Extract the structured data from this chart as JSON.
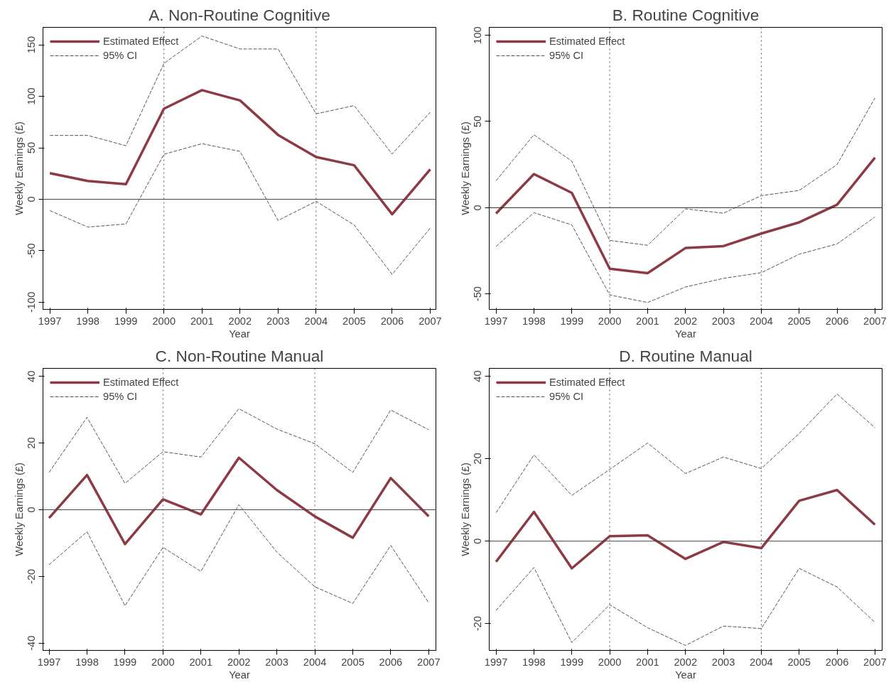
{
  "chart_data": [
    {
      "type": "line",
      "title": "A. Non-Routine Cognitive",
      "xlabel": "Year",
      "ylabel": "Weekly Earnings (£)",
      "x": [
        1997,
        1998,
        1999,
        2000,
        2001,
        2002,
        2003,
        2004,
        2005,
        2006,
        2007
      ],
      "xlim": [
        1996.82,
        2007.15
      ],
      "ylim": [
        -107,
        167
      ],
      "xticks": [
        1997,
        1998,
        1999,
        2000,
        2001,
        2002,
        2003,
        2004,
        2005,
        2006,
        2007
      ],
      "yticks": [
        -100,
        -50,
        0,
        50,
        100,
        150
      ],
      "grid": false,
      "legend": "top left",
      "series": [
        {
          "name": "Estimated Effect",
          "color": "#8e3a45",
          "line_style": "solid",
          "values": [
            25.4,
            17.7,
            14.6,
            88,
            106,
            96,
            62.5,
            41,
            33,
            -14.6,
            29
          ]
        },
        {
          "name": "95% CI",
          "color": "#555555",
          "line_style": "dashed",
          "values": [
            62,
            62,
            52,
            132,
            158.6,
            146,
            146,
            83,
            91,
            44,
            84.5
          ]
        },
        {
          "color": "#555555",
          "line_style": "dashed",
          "values": [
            -11,
            -27,
            -24,
            43.7,
            54,
            46.5,
            -20.6,
            -2,
            -25,
            -73,
            -28
          ]
        }
      ],
      "ref_lines": [
        {
          "axis": "y",
          "value": 0,
          "color": "#444444",
          "line_style": "solid"
        },
        {
          "axis": "x",
          "value": 2000,
          "color": "#555555",
          "line_style": "dotted"
        },
        {
          "axis": "x",
          "value": 2004,
          "color": "#555555",
          "line_style": "dotted"
        }
      ]
    },
    {
      "type": "line",
      "title": "B. Routine Cognitive",
      "xlabel": "Year",
      "ylabel": "Weekly Earnings (£)",
      "x": [
        1997,
        1998,
        1999,
        2000,
        2001,
        2002,
        2003,
        2004,
        2005,
        2006,
        2007
      ],
      "xlim": [
        1996.82,
        2007.19
      ],
      "ylim": [
        -59,
        104.6
      ],
      "xticks": [
        1997,
        1998,
        1999,
        2000,
        2001,
        2002,
        2003,
        2004,
        2005,
        2006,
        2007
      ],
      "yticks": [
        -50,
        0,
        50,
        100
      ],
      "grid": false,
      "legend": "top left",
      "series": [
        {
          "name": "Estimated Effect",
          "color": "#8e3a45",
          "line_style": "solid",
          "values": [
            -3.4,
            19.5,
            8.6,
            -35.4,
            -38,
            -23.4,
            -22.3,
            -15,
            -8.5,
            1.7,
            29
          ]
        },
        {
          "name": "95% CI",
          "color": "#555555",
          "line_style": "dashed",
          "values": [
            15.6,
            42.3,
            27,
            -19,
            -21.8,
            -0.7,
            -3.2,
            7,
            10,
            25,
            63.6
          ]
        },
        {
          "color": "#555555",
          "line_style": "dashed",
          "values": [
            -22.5,
            -2.9,
            -10,
            -50.6,
            -55,
            -46,
            -41,
            -37.7,
            -27,
            -21,
            -5.4
          ]
        }
      ],
      "ref_lines": [
        {
          "axis": "y",
          "value": 0,
          "color": "#222222",
          "line_style": "solid"
        },
        {
          "axis": "x",
          "value": 2000,
          "color": "#555555",
          "line_style": "dotted"
        },
        {
          "axis": "x",
          "value": 2004,
          "color": "#555555",
          "line_style": "dotted"
        }
      ]
    },
    {
      "type": "line",
      "title": "C. Non-Routine Manual",
      "xlabel": "Year",
      "ylabel": "Weekly Earnings (£)",
      "x": [
        1997,
        1998,
        1999,
        2000,
        2001,
        2002,
        2003,
        2004,
        2005,
        2006,
        2007
      ],
      "xlim": [
        1996.84,
        2007.19
      ],
      "ylim": [
        -42.2,
        42.4
      ],
      "xticks": [
        1997,
        1998,
        1999,
        2000,
        2001,
        2002,
        2003,
        2004,
        2005,
        2006,
        2007
      ],
      "yticks": [
        -40,
        -20,
        0,
        20,
        40
      ],
      "grid": false,
      "legend": "top left",
      "series": [
        {
          "name": "Estimated Effect",
          "color": "#8e3a45",
          "line_style": "solid",
          "values": [
            -2.5,
            10.4,
            -10.3,
            3.1,
            -1.4,
            15.6,
            5.9,
            -2,
            -8.4,
            9.5,
            -2
          ]
        },
        {
          "name": "95% CI",
          "color": "#555555",
          "line_style": "dashed",
          "values": [
            11.2,
            27.7,
            7.9,
            17.4,
            15.8,
            30.3,
            24.2,
            19.8,
            11.2,
            29.9,
            24
          ]
        },
        {
          "color": "#555555",
          "line_style": "dashed",
          "values": [
            -16.5,
            -6.6,
            -28.8,
            -11.3,
            -18.5,
            1.5,
            -12.7,
            -23.1,
            -28.1,
            -10.7,
            -27.9
          ]
        }
      ],
      "ref_lines": [
        {
          "axis": "y",
          "value": 0,
          "color": "#444444",
          "line_style": "solid"
        },
        {
          "axis": "x",
          "value": 2000,
          "color": "#555555",
          "line_style": "dotted"
        },
        {
          "axis": "x",
          "value": 2004,
          "color": "#555555",
          "line_style": "dotted"
        }
      ]
    },
    {
      "type": "line",
      "title": "D. Routine Manual",
      "xlabel": "Year",
      "ylabel": "Weekly Earnings (£)",
      "x": [
        1997,
        1998,
        1999,
        2000,
        2001,
        2002,
        2003,
        2004,
        2005,
        2006,
        2007
      ],
      "xlim": [
        1996.82,
        2007.19
      ],
      "ylim": [
        -26.5,
        41.9
      ],
      "xticks": [
        1997,
        1998,
        1999,
        2000,
        2001,
        2002,
        2003,
        2004,
        2005,
        2006,
        2007
      ],
      "yticks": [
        -20,
        0,
        20,
        40
      ],
      "grid": false,
      "legend": "top left",
      "series": [
        {
          "name": "Estimated Effect",
          "color": "#8e3a45",
          "line_style": "solid",
          "values": [
            -5,
            7.1,
            -6.6,
            1.2,
            1.4,
            -4.3,
            -0.2,
            -1.7,
            9.8,
            12.4,
            4
          ]
        },
        {
          "name": "95% CI",
          "color": "#555555",
          "line_style": "dashed",
          "values": [
            6.9,
            20.9,
            11.1,
            17.4,
            23.8,
            16.4,
            20.4,
            17.6,
            26.1,
            35.7,
            27.5
          ]
        },
        {
          "color": "#555555",
          "line_style": "dashed",
          "values": [
            -16.8,
            -6.4,
            -24.6,
            -15.4,
            -21,
            -25.3,
            -20.6,
            -21.2,
            -6.6,
            -11.1,
            -19.7
          ]
        }
      ],
      "ref_lines": [
        {
          "axis": "y",
          "value": 0,
          "color": "#444444",
          "line_style": "solid"
        },
        {
          "axis": "x",
          "value": 2000,
          "color": "#555555",
          "line_style": "dotted"
        },
        {
          "axis": "x",
          "value": 2004,
          "color": "#555555",
          "line_style": "dotted"
        }
      ]
    }
  ]
}
